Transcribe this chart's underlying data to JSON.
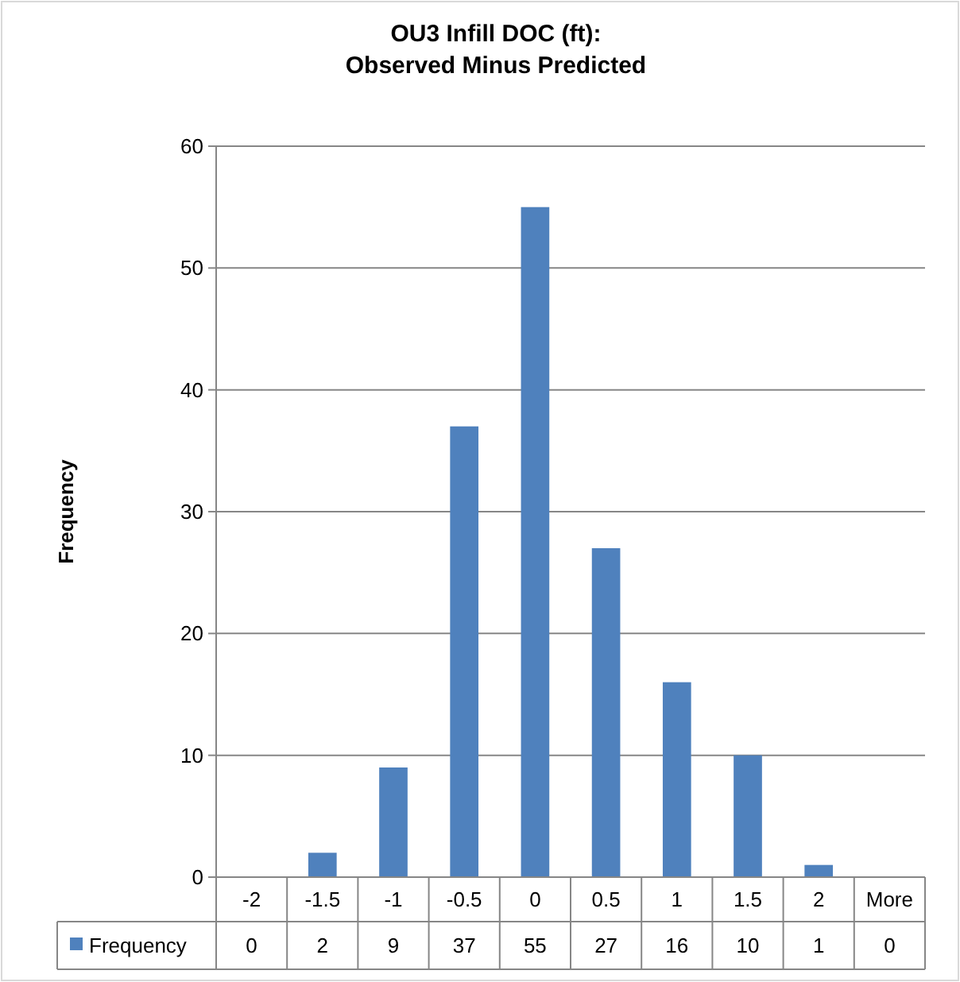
{
  "chart_data": {
    "type": "bar",
    "title": "OU3 Infill DOC (ft):\nObserved Minus Predicted",
    "ylabel": "Frequency",
    "categories": [
      "-2",
      "-1.5",
      "-1",
      "-0.5",
      "0",
      "0.5",
      "1",
      "1.5",
      "2",
      "More"
    ],
    "series": [
      {
        "name": "Frequency",
        "color": "#4f81bd",
        "values": [
          0,
          2,
          9,
          37,
          55,
          27,
          16,
          10,
          1,
          0
        ]
      }
    ],
    "ylim": [
      0,
      60
    ],
    "yticks": [
      0,
      10,
      20,
      30,
      40,
      50,
      60
    ],
    "grid": "y",
    "legend": "bottom",
    "data_labels": true
  }
}
